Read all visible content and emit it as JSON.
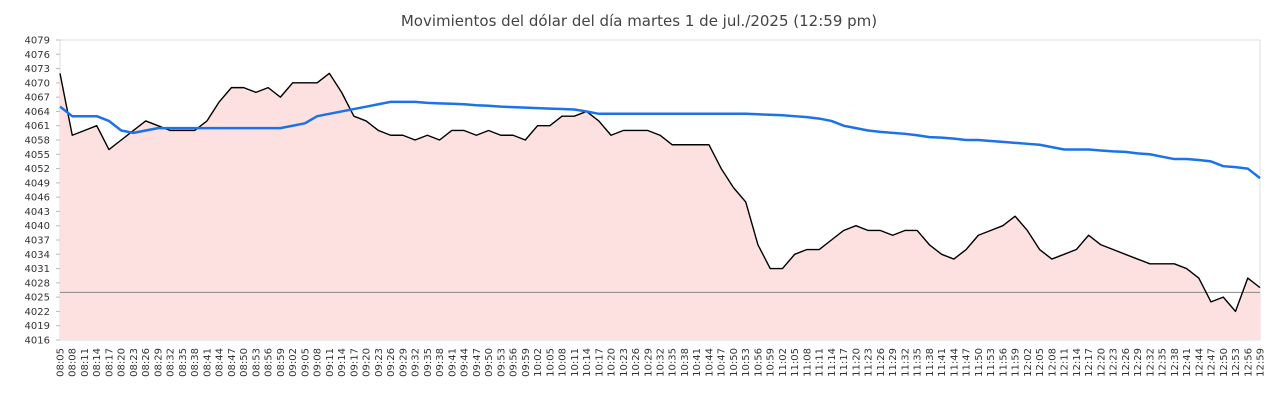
{
  "chart_data": {
    "type": "line",
    "title": "Movimientos del dólar del día martes 1 de jul./2025 (12:59 pm)",
    "categories": [
      "08:05",
      "08:08",
      "08:11",
      "08:14",
      "08:17",
      "08:20",
      "08:23",
      "08:26",
      "08:29",
      "08:32",
      "08:35",
      "08:38",
      "08:41",
      "08:44",
      "08:47",
      "08:50",
      "08:53",
      "08:56",
      "08:59",
      "09:02",
      "09:05",
      "09:08",
      "09:11",
      "09:14",
      "09:17",
      "09:20",
      "09:23",
      "09:26",
      "09:29",
      "09:32",
      "09:35",
      "09:38",
      "09:41",
      "09:44",
      "09:47",
      "09:50",
      "09:53",
      "09:56",
      "09:59",
      "10:02",
      "10:05",
      "10:08",
      "10:11",
      "10:14",
      "10:17",
      "10:20",
      "10:23",
      "10:26",
      "10:29",
      "10:32",
      "10:35",
      "10:38",
      "10:41",
      "10:44",
      "10:47",
      "10:50",
      "10:53",
      "10:56",
      "10:59",
      "11:02",
      "11:05",
      "11:08",
      "11:11",
      "11:14",
      "11:17",
      "11:20",
      "11:23",
      "11:26",
      "11:29",
      "11:32",
      "11:35",
      "11:38",
      "11:41",
      "11:44",
      "11:47",
      "11:50",
      "11:53",
      "11:56",
      "11:59",
      "12:02",
      "12:05",
      "12:08",
      "12:11",
      "12:14",
      "12:17",
      "12:20",
      "12:23",
      "12:26",
      "12:29",
      "12:32",
      "12:35",
      "12:38",
      "12:41",
      "12:44",
      "12:47",
      "12:50",
      "12:53",
      "12:56",
      "12:59"
    ],
    "series": [
      {
        "color": "#000000",
        "area_color": "#fde1e1",
        "values": [
          4072,
          4059,
          4060,
          4061,
          4056,
          4058,
          4060,
          4062,
          4061,
          4060,
          4060,
          4060,
          4062,
          4066,
          4069,
          4069,
          4068,
          4069,
          4067,
          4070,
          4070,
          4070,
          4072,
          4068,
          4063,
          4062,
          4060,
          4059,
          4059,
          4058,
          4059,
          4058,
          4060,
          4060,
          4059,
          4060,
          4059,
          4059,
          4058,
          4061,
          4061,
          4063,
          4063,
          4064,
          4062,
          4059,
          4060,
          4060,
          4060,
          4059,
          4057,
          4057,
          4057,
          4057,
          4052,
          4048,
          4045,
          4036,
          4031,
          4031,
          4034,
          4035,
          4035,
          4037,
          4039,
          4040,
          4039,
          4039,
          4038,
          4039,
          4039,
          4036,
          4034,
          4033,
          4035,
          4038,
          4039,
          4040,
          4042,
          4039,
          4035,
          4033,
          4034,
          4035,
          4038,
          4036,
          4035,
          4034,
          4033,
          4032,
          4032,
          4032,
          4031,
          4029,
          4024,
          4025,
          4022,
          4029,
          4027
        ]
      },
      {
        "color": "#1a73e8",
        "values": [
          4065,
          4063,
          4063,
          4063,
          4062,
          4060,
          4059.5,
          4060,
          4060.5,
          4060.5,
          4060.5,
          4060.5,
          4060.5,
          4060.5,
          4060.5,
          4060.5,
          4060.5,
          4060.5,
          4060.5,
          4061,
          4061.5,
          4063,
          4063.5,
          4064,
          4064.5,
          4065,
          4065.5,
          4066,
          4066,
          4066,
          4065.8,
          4065.7,
          4065.6,
          4065.5,
          4065.3,
          4065.2,
          4065,
          4064.9,
          4064.8,
          4064.7,
          4064.6,
          4064.5,
          4064.4,
          4064,
          4063.5,
          4063.5,
          4063.5,
          4063.5,
          4063.5,
          4063.5,
          4063.5,
          4063.5,
          4063.5,
          4063.5,
          4063.5,
          4063.5,
          4063.5,
          4063.4,
          4063.3,
          4063.2,
          4063,
          4062.8,
          4062.5,
          4062,
          4061,
          4060.5,
          4060,
          4059.7,
          4059.5,
          4059.3,
          4059,
          4058.6,
          4058.5,
          4058.3,
          4058,
          4058,
          4057.8,
          4057.6,
          4057.4,
          4057.2,
          4057,
          4056.5,
          4056,
          4056,
          4056,
          4055.8,
          4055.6,
          4055.5,
          4055.2,
          4055,
          4054.5,
          4054,
          4054,
          4053.8,
          4053.5,
          4052.5,
          4052.3,
          4052,
          4050
        ]
      }
    ],
    "reference_line": 4026,
    "ylim": [
      4016,
      4079
    ],
    "yticks": [
      4016,
      4019,
      4022,
      4025,
      4028,
      4031,
      4034,
      4037,
      4040,
      4043,
      4046,
      4049,
      4052,
      4055,
      4058,
      4061,
      4064,
      4067,
      4070,
      4073,
      4076,
      4079
    ]
  }
}
